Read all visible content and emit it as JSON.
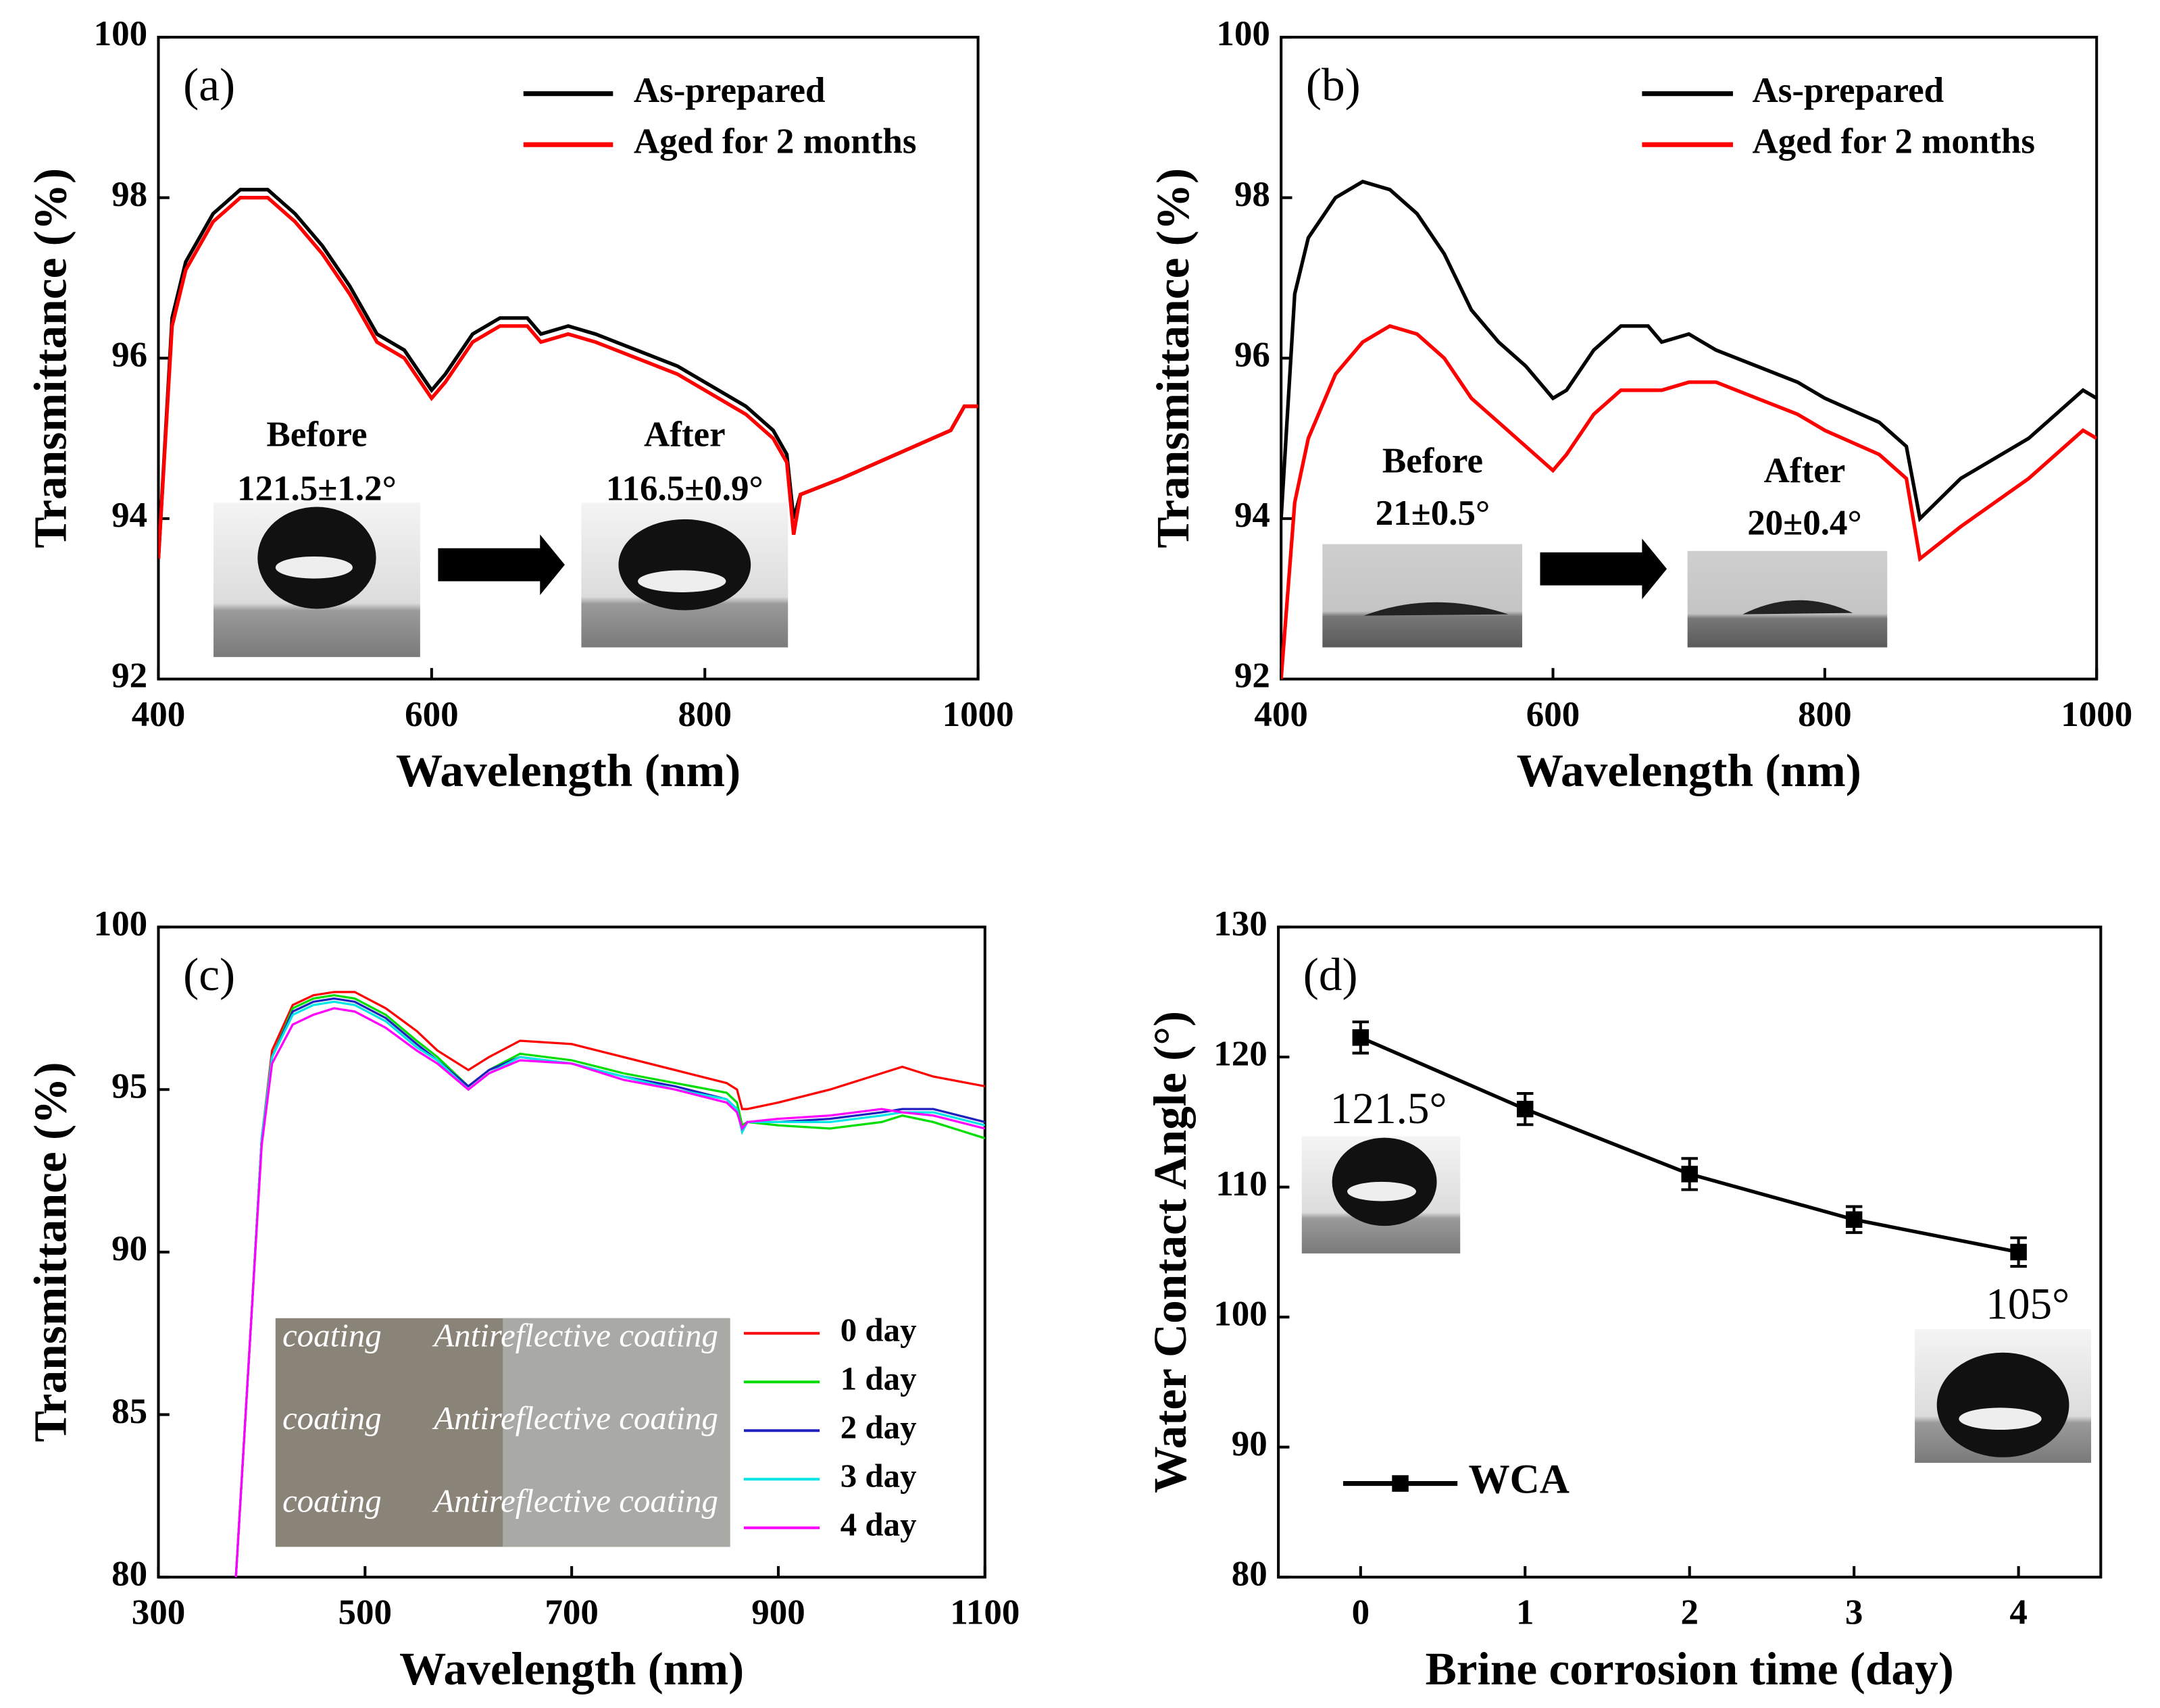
{
  "chart_data": [
    {
      "type": "line",
      "label": "(a)",
      "xlabel": "Wavelength (nm)",
      "ylabel": "Transmittance (%)",
      "xlim": [
        400,
        1000
      ],
      "xticks": [
        400,
        600,
        800,
        1000
      ],
      "ylim": [
        92,
        100
      ],
      "yticks": [
        92,
        94,
        96,
        98,
        100
      ],
      "x": [
        400,
        410,
        420,
        440,
        460,
        480,
        500,
        520,
        540,
        560,
        580,
        600,
        610,
        630,
        650,
        670,
        680,
        700,
        720,
        750,
        780,
        800,
        830,
        850,
        860,
        865,
        870,
        900,
        940,
        980,
        990,
        1000
      ],
      "series": [
        {
          "name": "As-prepared",
          "color": "#000000",
          "values": [
            93.5,
            96.5,
            97.2,
            97.8,
            98.1,
            98.1,
            97.8,
            97.4,
            96.9,
            96.3,
            96.1,
            95.6,
            95.8,
            96.3,
            96.5,
            96.5,
            96.3,
            96.4,
            96.3,
            96.1,
            95.9,
            95.7,
            95.4,
            95.1,
            94.8,
            94.0,
            94.3,
            94.5,
            94.8,
            95.1,
            95.4,
            95.4
          ]
        },
        {
          "name": "Aged for 2 months",
          "color": "#ff0000",
          "values": [
            93.5,
            96.4,
            97.1,
            97.7,
            98.0,
            98.0,
            97.7,
            97.3,
            96.8,
            96.2,
            96.0,
            95.5,
            95.7,
            96.2,
            96.4,
            96.4,
            96.2,
            96.3,
            96.2,
            96.0,
            95.8,
            95.6,
            95.3,
            95.0,
            94.7,
            93.8,
            94.3,
            94.5,
            94.8,
            95.1,
            95.4,
            95.4
          ]
        }
      ],
      "annotations": [
        "Before",
        "121.5±1.2°",
        "After",
        "116.5±0.9°"
      ]
    },
    {
      "type": "line",
      "label": "(b)",
      "xlabel": "Wavelength (nm)",
      "ylabel": "Transmittance (%)",
      "xlim": [
        400,
        1000
      ],
      "xticks": [
        400,
        600,
        800,
        1000
      ],
      "ylim": [
        92,
        100
      ],
      "yticks": [
        92,
        94,
        96,
        98,
        100
      ],
      "x": [
        400,
        410,
        420,
        440,
        460,
        480,
        500,
        520,
        540,
        560,
        580,
        600,
        610,
        630,
        650,
        670,
        680,
        700,
        720,
        750,
        780,
        800,
        840,
        860,
        870,
        900,
        950,
        990,
        1000
      ],
      "series": [
        {
          "name": "As-prepared",
          "color": "#000000",
          "values": [
            94.0,
            96.8,
            97.5,
            98.0,
            98.2,
            98.1,
            97.8,
            97.3,
            96.6,
            96.2,
            95.9,
            95.5,
            95.6,
            96.1,
            96.4,
            96.4,
            96.2,
            96.3,
            96.1,
            95.9,
            95.7,
            95.5,
            95.2,
            94.9,
            94.0,
            94.5,
            95.0,
            95.6,
            95.5
          ]
        },
        {
          "name": "Aged for 2 months",
          "color": "#ff0000",
          "values": [
            92.0,
            94.2,
            95.0,
            95.8,
            96.2,
            96.4,
            96.3,
            96.0,
            95.5,
            95.2,
            94.9,
            94.6,
            94.8,
            95.3,
            95.6,
            95.6,
            95.6,
            95.7,
            95.7,
            95.5,
            95.3,
            95.1,
            94.8,
            94.5,
            93.5,
            93.9,
            94.5,
            95.1,
            95.0
          ]
        }
      ],
      "annotations": [
        "Before",
        "21±0.5°",
        "After",
        "20±0.4°"
      ]
    },
    {
      "type": "line",
      "label": "(c)",
      "xlabel": "Wavelength (nm)",
      "ylabel": "Transmittance (%)",
      "xlim": [
        300,
        1100
      ],
      "xticks": [
        300,
        500,
        700,
        900,
        1100
      ],
      "ylim": [
        80,
        100
      ],
      "yticks": [
        80,
        85,
        90,
        95,
        100
      ],
      "x": [
        375,
        390,
        400,
        410,
        430,
        450,
        470,
        490,
        520,
        550,
        570,
        600,
        620,
        650,
        700,
        750,
        800,
        850,
        860,
        865,
        870,
        900,
        950,
        1000,
        1020,
        1050,
        1100
      ],
      "series": [
        {
          "name": "0 day",
          "color": "#ff0000",
          "values": [
            80,
            88,
            93.5,
            96.2,
            97.6,
            97.9,
            98.0,
            98.0,
            97.5,
            96.8,
            96.2,
            95.6,
            96.0,
            96.5,
            96.4,
            96.0,
            95.6,
            95.2,
            95.0,
            94.4,
            94.4,
            94.6,
            95.0,
            95.5,
            95.7,
            95.4,
            95.1
          ]
        },
        {
          "name": "1 day",
          "color": "#00dd00",
          "values": [
            80,
            88,
            93.5,
            96.0,
            97.5,
            97.8,
            97.9,
            97.8,
            97.3,
            96.5,
            96.0,
            95.1,
            95.6,
            96.1,
            95.9,
            95.5,
            95.2,
            94.9,
            94.6,
            93.9,
            94.0,
            93.9,
            93.8,
            94.0,
            94.2,
            94.0,
            93.5
          ]
        },
        {
          "name": "2 day",
          "color": "#2020c0",
          "values": [
            80,
            88,
            93.5,
            96.0,
            97.4,
            97.7,
            97.8,
            97.7,
            97.2,
            96.4,
            95.9,
            95.1,
            95.6,
            96.0,
            95.8,
            95.4,
            95.1,
            94.7,
            94.4,
            93.7,
            94.0,
            94.0,
            94.1,
            94.3,
            94.4,
            94.4,
            94.0
          ]
        },
        {
          "name": "3 day",
          "color": "#00e5e5",
          "values": [
            80,
            88,
            93.5,
            96.0,
            97.3,
            97.6,
            97.7,
            97.6,
            97.1,
            96.3,
            95.9,
            95.0,
            95.5,
            96.0,
            95.8,
            95.4,
            95.0,
            94.7,
            94.4,
            93.7,
            94.0,
            94.0,
            94.0,
            94.2,
            94.3,
            94.3,
            93.9
          ]
        },
        {
          "name": "4 day",
          "color": "#ff00ff",
          "values": [
            80,
            88,
            93.3,
            95.8,
            97.0,
            97.3,
            97.5,
            97.4,
            96.9,
            96.2,
            95.8,
            95.0,
            95.5,
            95.9,
            95.8,
            95.3,
            95.0,
            94.6,
            94.3,
            93.8,
            94.0,
            94.1,
            94.2,
            94.4,
            94.3,
            94.2,
            93.8
          ]
        }
      ],
      "annotations": [
        "coating",
        "Antireflective coating",
        "coating",
        "Antireflective coating",
        "coating",
        "Antireflective coating"
      ]
    },
    {
      "type": "errorline",
      "label": "(d)",
      "xlabel": "Brine corrosion time (day)",
      "ylabel": "Water Contact Angle (°)",
      "xlim": [
        -0.5,
        4.5
      ],
      "xticks": [
        0,
        1,
        2,
        3,
        4
      ],
      "ylim": [
        80,
        130
      ],
      "yticks": [
        80,
        90,
        100,
        110,
        120,
        130
      ],
      "x": [
        0,
        1,
        2,
        3,
        4
      ],
      "series": [
        {
          "name": "WCA",
          "color": "#000000",
          "values": [
            121.5,
            116,
            111,
            107.5,
            105
          ],
          "errors": [
            1.2,
            1.2,
            1.2,
            1.0,
            1.1
          ]
        }
      ],
      "annotations": [
        "121.5°",
        "105°"
      ]
    }
  ]
}
